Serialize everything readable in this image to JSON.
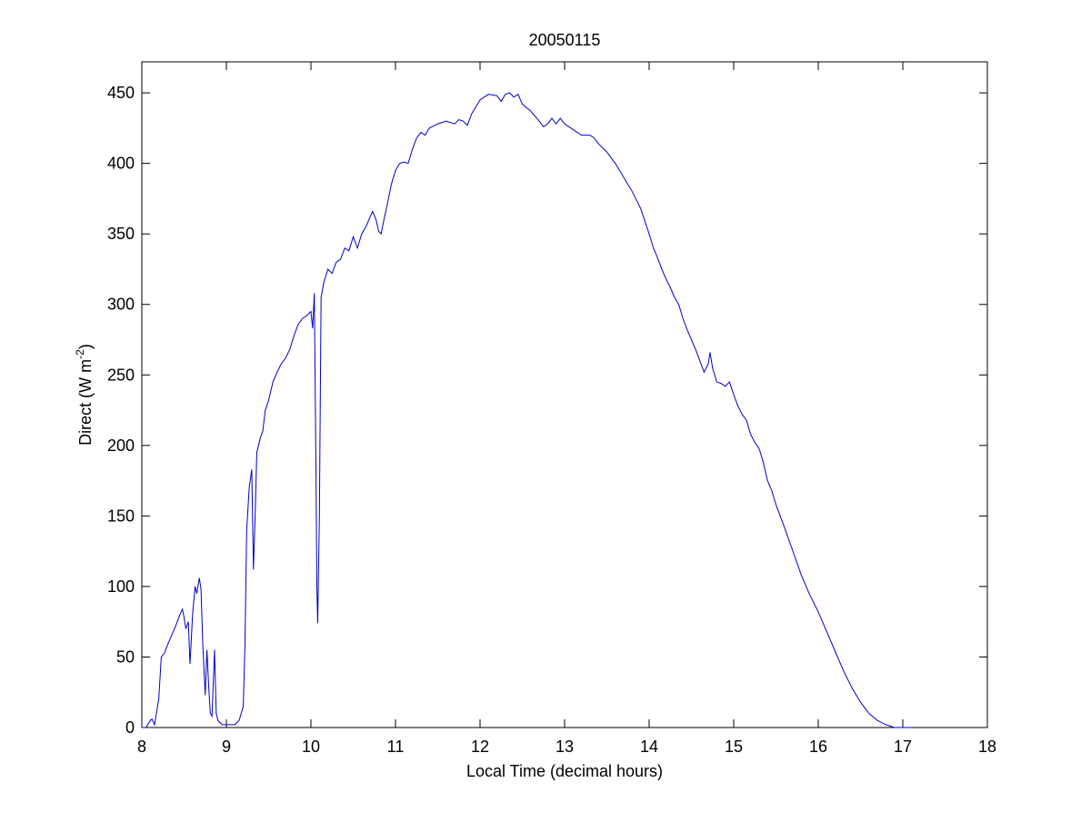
{
  "chart_data": {
    "type": "line",
    "title": "20050115",
    "xlabel": "Local Time (decimal hours)",
    "ylabel": [
      "Direct (W m",
      "-2",
      ")"
    ],
    "xlim": [
      8,
      18
    ],
    "xticks": [
      8,
      9,
      10,
      11,
      12,
      13,
      14,
      15,
      16,
      17,
      18
    ],
    "ylim": [
      0,
      472
    ],
    "yticks": [
      0,
      50,
      100,
      150,
      200,
      250,
      300,
      350,
      400,
      450
    ],
    "series": [
      {
        "color": "#0000cc",
        "x": [
          8.0,
          8.05,
          8.1,
          8.12,
          8.15,
          8.2,
          8.23,
          8.27,
          8.3,
          8.35,
          8.4,
          8.45,
          8.48,
          8.5,
          8.52,
          8.55,
          8.57,
          8.6,
          8.63,
          8.65,
          8.68,
          8.7,
          8.72,
          8.75,
          8.77,
          8.79,
          8.81,
          8.83,
          8.86,
          8.88,
          8.9,
          8.95,
          9.0,
          9.05,
          9.1,
          9.15,
          9.2,
          9.22,
          9.24,
          9.27,
          9.3,
          9.32,
          9.34,
          9.36,
          9.4,
          9.43,
          9.46,
          9.5,
          9.55,
          9.6,
          9.65,
          9.7,
          9.75,
          9.8,
          9.85,
          9.9,
          9.95,
          10.0,
          10.02,
          10.04,
          10.06,
          10.07,
          10.08,
          10.1,
          10.12,
          10.15,
          10.2,
          10.25,
          10.3,
          10.35,
          10.4,
          10.45,
          10.5,
          10.55,
          10.6,
          10.65,
          10.7,
          10.73,
          10.77,
          10.8,
          10.83,
          10.87,
          10.9,
          10.95,
          11.0,
          11.05,
          11.1,
          11.15,
          11.2,
          11.25,
          11.3,
          11.35,
          11.4,
          11.5,
          11.6,
          11.7,
          11.75,
          11.8,
          11.85,
          11.9,
          11.95,
          12.0,
          12.1,
          12.2,
          12.25,
          12.3,
          12.35,
          12.4,
          12.45,
          12.5,
          12.6,
          12.7,
          12.75,
          12.8,
          12.85,
          12.9,
          12.95,
          13.0,
          13.1,
          13.2,
          13.3,
          13.35,
          13.4,
          13.5,
          13.6,
          13.7,
          13.8,
          13.9,
          14.0,
          14.05,
          14.1,
          14.15,
          14.2,
          14.25,
          14.3,
          14.35,
          14.4,
          14.45,
          14.5,
          14.55,
          14.6,
          14.65,
          14.7,
          14.72,
          14.75,
          14.8,
          14.85,
          14.9,
          14.95,
          15.0,
          15.05,
          15.1,
          15.15,
          15.2,
          15.25,
          15.3,
          15.35,
          15.4,
          15.45,
          15.5,
          15.6,
          15.7,
          15.8,
          15.9,
          16.0,
          16.1,
          16.2,
          16.3,
          16.4,
          16.5,
          16.6,
          16.7,
          16.8,
          16.9,
          17.0,
          17.1
        ],
        "values": [
          0,
          0,
          5,
          6,
          2,
          20,
          50,
          53,
          58,
          65,
          72,
          80,
          84,
          78,
          70,
          75,
          45,
          80,
          100,
          95,
          106,
          98,
          60,
          23,
          55,
          30,
          10,
          8,
          55,
          10,
          5,
          2,
          2,
          2,
          2,
          5,
          15,
          60,
          140,
          170,
          183,
          112,
          150,
          195,
          205,
          210,
          225,
          232,
          245,
          252,
          258,
          262,
          268,
          278,
          286,
          290,
          292,
          295,
          283,
          308,
          180,
          100,
          74,
          150,
          305,
          315,
          325,
          322,
          330,
          332,
          340,
          338,
          348,
          340,
          350,
          355,
          362,
          366,
          360,
          352,
          350,
          362,
          370,
          385,
          395,
          400,
          401,
          400,
          410,
          418,
          422,
          420,
          425,
          428,
          430,
          428,
          431,
          430,
          427,
          435,
          440,
          445,
          449,
          448,
          444,
          449,
          450,
          447,
          449,
          442,
          437,
          430,
          426,
          428,
          432,
          428,
          432,
          428,
          424,
          420,
          420,
          418,
          414,
          408,
          400,
          390,
          380,
          368,
          350,
          340,
          333,
          325,
          318,
          312,
          305,
          300,
          290,
          282,
          275,
          268,
          260,
          252,
          258,
          266,
          255,
          245,
          244,
          242,
          245,
          236,
          228,
          222,
          218,
          208,
          202,
          198,
          188,
          175,
          168,
          158,
          142,
          125,
          108,
          94,
          82,
          68,
          54,
          40,
          28,
          18,
          10,
          5,
          2,
          0,
          0,
          0
        ]
      }
    ]
  }
}
